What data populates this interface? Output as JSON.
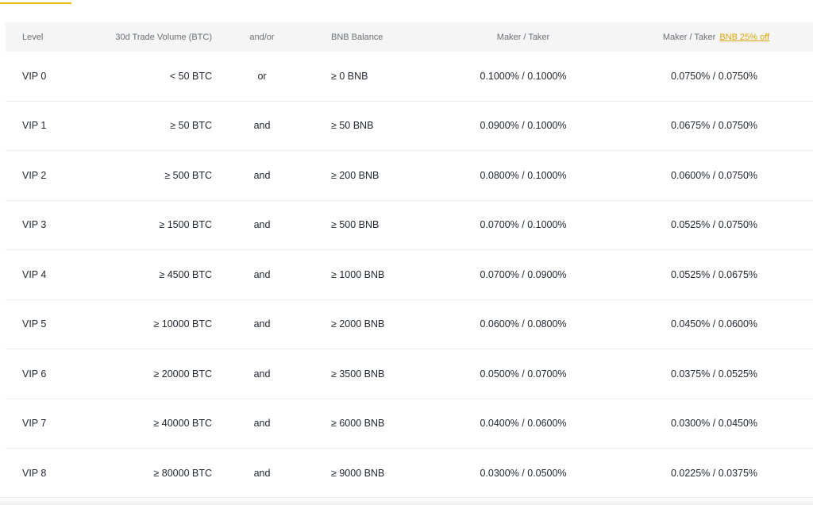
{
  "table": {
    "headers": {
      "level": "Level",
      "volume": "30d Trade Volume (BTC)",
      "andor": "and/or",
      "bnb_balance": "BNB Balance",
      "maker_taker": "Maker / Taker",
      "maker_taker_discount": "Maker / Taker",
      "discount_link": "BNB 25% off"
    },
    "rows": [
      {
        "level": "VIP 0",
        "volume": "< 50 BTC",
        "andor": "or",
        "bnb": "≥ 0 BNB",
        "fee": "0.1000% / 0.1000%",
        "discount_fee": "0.0750% / 0.0750%"
      },
      {
        "level": "VIP 1",
        "volume": "≥ 50 BTC",
        "andor": "and",
        "bnb": "≥ 50 BNB",
        "fee": "0.0900% / 0.1000%",
        "discount_fee": "0.0675% / 0.0750%"
      },
      {
        "level": "VIP 2",
        "volume": "≥ 500 BTC",
        "andor": "and",
        "bnb": "≥ 200 BNB",
        "fee": "0.0800% / 0.1000%",
        "discount_fee": "0.0600% / 0.0750%"
      },
      {
        "level": "VIP 3",
        "volume": "≥ 1500 BTC",
        "andor": "and",
        "bnb": "≥ 500 BNB",
        "fee": "0.0700% / 0.1000%",
        "discount_fee": "0.0525% / 0.0750%"
      },
      {
        "level": "VIP 4",
        "volume": "≥ 4500 BTC",
        "andor": "and",
        "bnb": "≥ 1000 BNB",
        "fee": "0.0700% / 0.0900%",
        "discount_fee": "0.0525% / 0.0675%"
      },
      {
        "level": "VIP 5",
        "volume": "≥ 10000 BTC",
        "andor": "and",
        "bnb": "≥ 2000 BNB",
        "fee": "0.0600% / 0.0800%",
        "discount_fee": "0.0450% / 0.0600%"
      },
      {
        "level": "VIP 6",
        "volume": "≥ 20000 BTC",
        "andor": "and",
        "bnb": "≥ 3500 BNB",
        "fee": "0.0500% / 0.0700%",
        "discount_fee": "0.0375% / 0.0525%"
      },
      {
        "level": "VIP 7",
        "volume": "≥ 40000 BTC",
        "andor": "and",
        "bnb": "≥ 6000 BNB",
        "fee": "0.0400% / 0.0600%",
        "discount_fee": "0.0300% / 0.0450%"
      },
      {
        "level": "VIP 8",
        "volume": "≥ 80000 BTC",
        "andor": "and",
        "bnb": "≥ 9000 BNB",
        "fee": "0.0300% / 0.0500%",
        "discount_fee": "0.0225% / 0.0375%"
      }
    ]
  },
  "colors": {
    "accent": "#f0b90b",
    "discount_link": "#d9a40a",
    "header_bg": "#f5f5f5",
    "row_divider": "#eceef0"
  }
}
